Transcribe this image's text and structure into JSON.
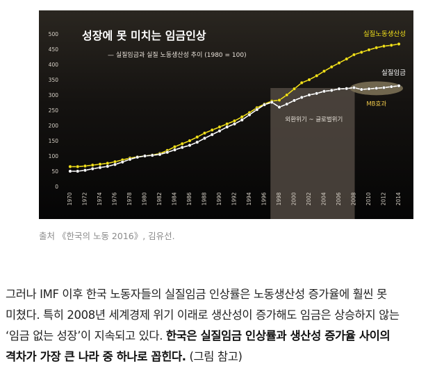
{
  "chart_data": {
    "type": "line",
    "title": "성장에 못 미치는 임금인상",
    "subtitle": "— 실질임금과 실질 노동생산성 추이 (1980 = 100)",
    "x": [
      1970,
      1971,
      1972,
      1973,
      1974,
      1975,
      1976,
      1977,
      1978,
      1979,
      1980,
      1981,
      1982,
      1983,
      1984,
      1985,
      1986,
      1987,
      1988,
      1989,
      1990,
      1991,
      1992,
      1993,
      1994,
      1995,
      1996,
      1997,
      1998,
      1999,
      2000,
      2001,
      2002,
      2003,
      2004,
      2005,
      2006,
      2007,
      2008,
      2009,
      2010,
      2011,
      2012,
      2013,
      2014
    ],
    "x_tick_labels": [
      "1970",
      "1972",
      "1974",
      "1976",
      "1978",
      "1980",
      "1982",
      "1984",
      "1986",
      "1988",
      "1990",
      "1992",
      "1994",
      "1996",
      "1998",
      "2000",
      "2002",
      "2004",
      "2006",
      "2008",
      "2010",
      "2012",
      "2014"
    ],
    "y_ticks": [
      0,
      50,
      100,
      150,
      200,
      250,
      300,
      350,
      400,
      450,
      500
    ],
    "ylim": [
      0,
      500
    ],
    "series": [
      {
        "name": "실질노동생산성",
        "color": "#f2e01a",
        "values": [
          65,
          65,
          67,
          70,
          73,
          76,
          81,
          87,
          93,
          97,
          100,
          103,
          108,
          118,
          130,
          140,
          150,
          162,
          175,
          185,
          195,
          205,
          215,
          228,
          242,
          258,
          270,
          280,
          283,
          300,
          320,
          340,
          350,
          363,
          378,
          392,
          405,
          418,
          432,
          440,
          448,
          455,
          460,
          463,
          467
        ]
      },
      {
        "name": "실질임금",
        "color": "#ffffff",
        "values": [
          50,
          50,
          53,
          58,
          62,
          66,
          72,
          80,
          89,
          96,
          100,
          102,
          105,
          112,
          120,
          128,
          135,
          145,
          158,
          170,
          182,
          195,
          205,
          218,
          235,
          252,
          268,
          276,
          260,
          270,
          282,
          292,
          300,
          305,
          312,
          315,
          320,
          321,
          324,
          318,
          320,
          322,
          324,
          327,
          330
        ]
      }
    ],
    "shaded_region": {
      "from": 1997,
      "to": 2008,
      "label": "외환위기 ~ 글로벌위기"
    },
    "annotation": {
      "label": "MB효과",
      "from": 2008,
      "to": 2014
    },
    "grid": false,
    "background": "#0b0b0b"
  },
  "caption": "출처 《한국의 노동 2016》, 김유선.",
  "article": {
    "line1": "그러나 IMF 이후 한국 노동자들의 실질임금 인상률은 노동생산성 증가율에 훨씬 못",
    "line2": "미쳤다. 특히 2008년 세계경제 위기 이래로 생산성이 증가해도 임금은 상승하지 않는",
    "line3_normal": "‘임금 없는 성장’이 지속되고 있다. ",
    "line3_bold": "한국은 실질임금 인상률과 생산성 증가율 사이의",
    "line4_bold": "격차가 가장 큰 나라 중 하나로 꼽힌다.",
    "line4_tail": " (그림 참고)"
  }
}
